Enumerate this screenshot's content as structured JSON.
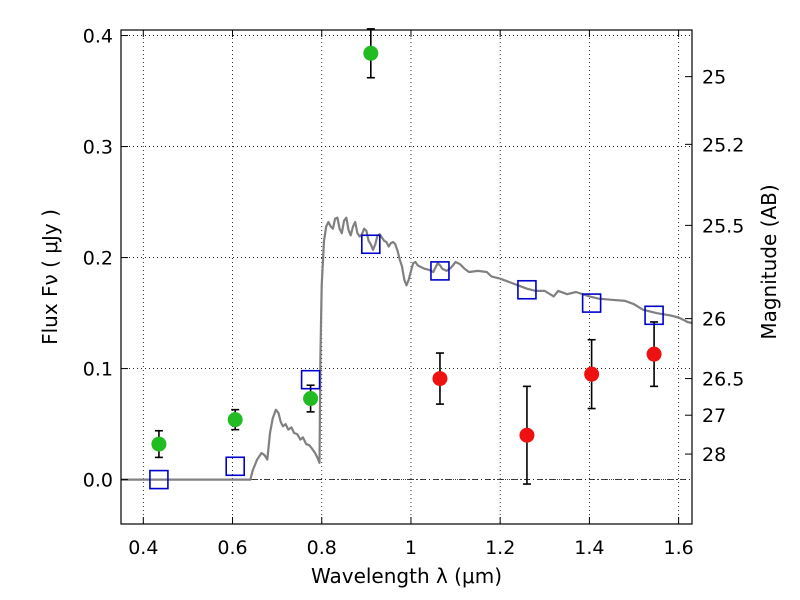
{
  "chart_data": {
    "type": "scatter",
    "xlabel": "Wavelength  λ (μm)",
    "ylabel": "Flux  Fν  ( μJy )",
    "y2label": "Magnitude (AB)",
    "xlim": [
      0.35,
      1.63
    ],
    "ylim": [
      -0.04,
      0.405
    ],
    "grid": true,
    "x_ticks": [
      0.4,
      0.6,
      0.8,
      1.0,
      1.2,
      1.4,
      1.6
    ],
    "x_tick_labels": [
      "0.4",
      "0.6",
      "0.8",
      "1",
      "1.2",
      "1.4",
      "1.6"
    ],
    "y_ticks": [
      0.0,
      0.1,
      0.2,
      0.3,
      0.4
    ],
    "y_tick_labels": [
      "0.0",
      "0.1",
      "0.2",
      "0.3",
      "0.4"
    ],
    "y2_ticks": [
      {
        "label": "25",
        "flux": 0.363
      },
      {
        "label": "25.2",
        "flux": 0.302
      },
      {
        "label": "25.5",
        "flux": 0.229
      },
      {
        "label": "26",
        "flux": 0.145
      },
      {
        "label": "26.5",
        "flux": 0.091
      },
      {
        "label": "27",
        "flux": 0.058
      },
      {
        "label": "28",
        "flux": 0.023
      }
    ],
    "colors": {
      "green": "#22bb22",
      "red": "#ee1111",
      "model": "#808080",
      "box": "#0000cc"
    },
    "series": [
      {
        "marker": "circle",
        "color": "green",
        "points": [
          {
            "x": 0.435,
            "y": 0.032,
            "err": 0.012
          },
          {
            "x": 0.606,
            "y": 0.054,
            "err": 0.009
          },
          {
            "x": 0.775,
            "y": 0.073,
            "err": 0.012
          },
          {
            "x": 0.91,
            "y": 0.384,
            "err": 0.022
          }
        ]
      },
      {
        "marker": "circle",
        "color": "red",
        "points": [
          {
            "x": 1.065,
            "y": 0.091,
            "err": 0.023
          },
          {
            "x": 1.26,
            "y": 0.04,
            "err": 0.044
          },
          {
            "x": 1.405,
            "y": 0.095,
            "err": 0.031
          },
          {
            "x": 1.545,
            "y": 0.113,
            "err": 0.029
          }
        ]
      },
      {
        "marker": "open-square",
        "color": "box",
        "points": [
          {
            "x": 0.435,
            "y": 0.0
          },
          {
            "x": 0.606,
            "y": 0.012
          },
          {
            "x": 0.775,
            "y": 0.09
          },
          {
            "x": 0.91,
            "y": 0.212
          },
          {
            "x": 1.065,
            "y": 0.188
          },
          {
            "x": 1.26,
            "y": 0.171
          },
          {
            "x": 1.405,
            "y": 0.159
          },
          {
            "x": 1.545,
            "y": 0.148
          }
        ]
      },
      {
        "line": "model",
        "color": "model",
        "points": [
          [
            0.35,
            0.0
          ],
          [
            0.64,
            0.0
          ],
          [
            0.645,
            0.008
          ],
          [
            0.655,
            0.018
          ],
          [
            0.665,
            0.024
          ],
          [
            0.672,
            0.022
          ],
          [
            0.678,
            0.018
          ],
          [
            0.684,
            0.042
          ],
          [
            0.69,
            0.055
          ],
          [
            0.697,
            0.063
          ],
          [
            0.703,
            0.06
          ],
          [
            0.708,
            0.052
          ],
          [
            0.713,
            0.048
          ],
          [
            0.719,
            0.05
          ],
          [
            0.725,
            0.045
          ],
          [
            0.732,
            0.047
          ],
          [
            0.738,
            0.042
          ],
          [
            0.745,
            0.041
          ],
          [
            0.752,
            0.036
          ],
          [
            0.758,
            0.038
          ],
          [
            0.765,
            0.032
          ],
          [
            0.772,
            0.031
          ],
          [
            0.778,
            0.028
          ],
          [
            0.785,
            0.024
          ],
          [
            0.79,
            0.02
          ],
          [
            0.795,
            0.015
          ],
          [
            0.797,
            0.11
          ],
          [
            0.8,
            0.175
          ],
          [
            0.805,
            0.215
          ],
          [
            0.81,
            0.228
          ],
          [
            0.815,
            0.232
          ],
          [
            0.82,
            0.228
          ],
          [
            0.825,
            0.226
          ],
          [
            0.83,
            0.235
          ],
          [
            0.835,
            0.236
          ],
          [
            0.84,
            0.226
          ],
          [
            0.845,
            0.222
          ],
          [
            0.85,
            0.233
          ],
          [
            0.855,
            0.236
          ],
          [
            0.86,
            0.225
          ],
          [
            0.865,
            0.22
          ],
          [
            0.87,
            0.228
          ],
          [
            0.875,
            0.232
          ],
          [
            0.88,
            0.222
          ],
          [
            0.885,
            0.219
          ],
          [
            0.89,
            0.221
          ],
          [
            0.895,
            0.226
          ],
          [
            0.9,
            0.224
          ],
          [
            0.905,
            0.215
          ],
          [
            0.91,
            0.212
          ],
          [
            0.915,
            0.207
          ],
          [
            0.92,
            0.212
          ],
          [
            0.925,
            0.22
          ],
          [
            0.93,
            0.221
          ],
          [
            0.935,
            0.218
          ],
          [
            0.94,
            0.215
          ],
          [
            0.945,
            0.214
          ],
          [
            0.95,
            0.21
          ],
          [
            0.955,
            0.213
          ],
          [
            0.96,
            0.214
          ],
          [
            0.965,
            0.212
          ],
          [
            0.97,
            0.206
          ],
          [
            0.975,
            0.198
          ],
          [
            0.98,
            0.192
          ],
          [
            0.985,
            0.18
          ],
          [
            0.99,
            0.175
          ],
          [
            0.995,
            0.18
          ],
          [
            1.0,
            0.188
          ],
          [
            1.005,
            0.195
          ],
          [
            1.01,
            0.196
          ],
          [
            1.015,
            0.193
          ],
          [
            1.02,
            0.192
          ],
          [
            1.03,
            0.19
          ],
          [
            1.04,
            0.189
          ],
          [
            1.05,
            0.187
          ],
          [
            1.06,
            0.195
          ],
          [
            1.065,
            0.193
          ],
          [
            1.07,
            0.19
          ],
          [
            1.08,
            0.188
          ],
          [
            1.09,
            0.191
          ],
          [
            1.1,
            0.196
          ],
          [
            1.11,
            0.194
          ],
          [
            1.12,
            0.19
          ],
          [
            1.13,
            0.187
          ],
          [
            1.15,
            0.188
          ],
          [
            1.17,
            0.187
          ],
          [
            1.18,
            0.183
          ],
          [
            1.2,
            0.181
          ],
          [
            1.22,
            0.178
          ],
          [
            1.24,
            0.175
          ],
          [
            1.26,
            0.172
          ],
          [
            1.28,
            0.17
          ],
          [
            1.3,
            0.17
          ],
          [
            1.32,
            0.165
          ],
          [
            1.33,
            0.17
          ],
          [
            1.35,
            0.167
          ],
          [
            1.37,
            0.169
          ],
          [
            1.4,
            0.165
          ],
          [
            1.42,
            0.163
          ],
          [
            1.45,
            0.162
          ],
          [
            1.48,
            0.161
          ],
          [
            1.5,
            0.158
          ],
          [
            1.52,
            0.153
          ],
          [
            1.55,
            0.15
          ],
          [
            1.58,
            0.148
          ],
          [
            1.6,
            0.146
          ],
          [
            1.61,
            0.144
          ],
          [
            1.62,
            0.142
          ],
          [
            1.63,
            0.141
          ]
        ]
      }
    ]
  }
}
